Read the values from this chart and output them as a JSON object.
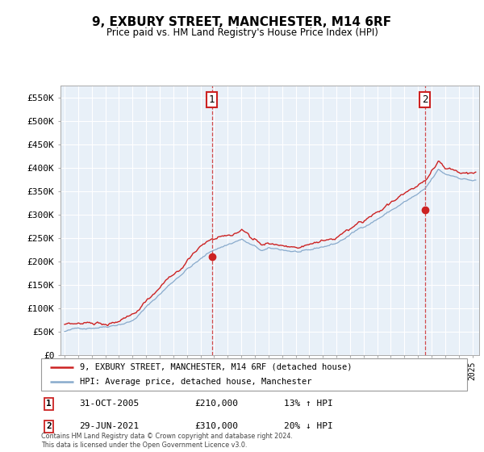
{
  "title": "9, EXBURY STREET, MANCHESTER, M14 6RF",
  "subtitle": "Price paid vs. HM Land Registry's House Price Index (HPI)",
  "ylabel_ticks": [
    "£0",
    "£50K",
    "£100K",
    "£150K",
    "£200K",
    "£250K",
    "£300K",
    "£350K",
    "£400K",
    "£450K",
    "£500K",
    "£550K"
  ],
  "ytick_values": [
    0,
    50000,
    100000,
    150000,
    200000,
    250000,
    300000,
    350000,
    400000,
    450000,
    500000,
    550000
  ],
  "ylim": [
    0,
    575000
  ],
  "xlim_start": 1994.7,
  "xlim_end": 2025.5,
  "legend_line1": "9, EXBURY STREET, MANCHESTER, M14 6RF (detached house)",
  "legend_line2": "HPI: Average price, detached house, Manchester",
  "sale1_label": "1",
  "sale1_date": "31-OCT-2005",
  "sale1_price": "£210,000",
  "sale1_hpi": "13% ↑ HPI",
  "sale1_x": 2005.83,
  "sale1_y": 210000,
  "sale2_label": "2",
  "sale2_date": "29-JUN-2021",
  "sale2_price": "£310,000",
  "sale2_hpi": "20% ↓ HPI",
  "sale2_x": 2021.5,
  "sale2_y": 310000,
  "vline1_x": 2005.83,
  "vline2_x": 2021.5,
  "footnote": "Contains HM Land Registry data © Crown copyright and database right 2024.\nThis data is licensed under the Open Government Licence v3.0.",
  "line_color_red": "#cc2222",
  "line_color_blue": "#88aacc",
  "background_color": "#ffffff",
  "plot_bg_color": "#e8f0f8",
  "grid_color": "#ffffff"
}
